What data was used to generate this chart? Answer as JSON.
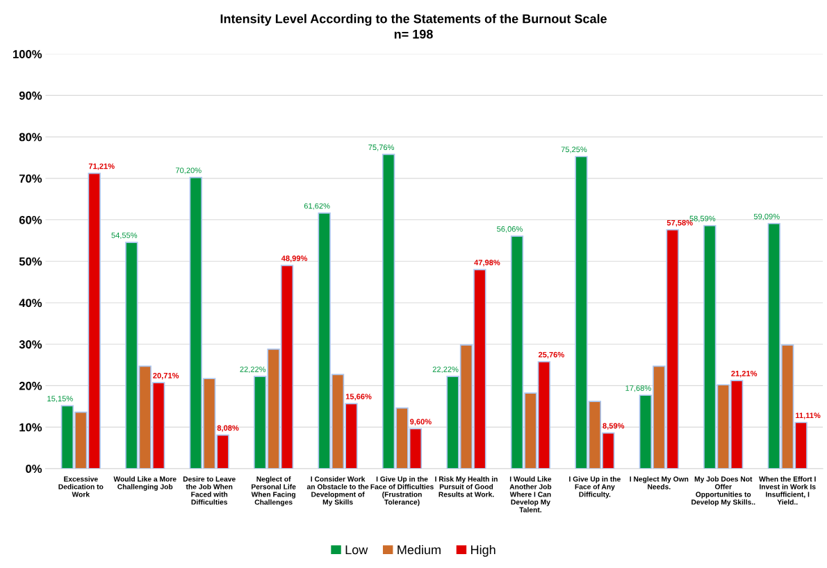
{
  "chart_data": {
    "type": "bar",
    "title": "Intensity Level According to the Statements of the Burnout Scale",
    "subtitle": "n= 198",
    "categories": [
      "Excessive\nDedication to\nWork",
      "Would Like a More\nChallenging Job",
      "Desire to Leave\nthe Job When\nFaced with\nDifficulties",
      "Neglect of\nPersonal Life\nWhen Facing\nChallenges",
      "I Consider Work\nan Obstacle to the\nDevelopment of\nMy Skills",
      "I Give Up in the\nFace of Difficulties\n(Frustration\nTolerance)",
      "I Risk My Health in\nPursuit of Good\nResults at Work.",
      "I Would Like\nAnother Job\nWhere I Can\nDevelop My\nTalent.",
      "I Give Up in the\nFace of Any\nDifficulty.",
      "I Neglect My Own\nNeeds.",
      "My Job Does Not\nOffer\nOpportunities to\nDevelop My Skills..",
      "When the Effort I\nInvest in Work Is\nInsufficient, I\nYield.."
    ],
    "series": [
      {
        "name": "Low",
        "color": "#00963f",
        "values": [
          15.15,
          54.55,
          70.2,
          22.22,
          61.62,
          75.76,
          22.22,
          56.06,
          75.25,
          17.68,
          58.59,
          59.09
        ],
        "value_labels": [
          "15,15%",
          "54,55%",
          "70,20%",
          "22,22%",
          "61,62%",
          "75,76%",
          "22,22%",
          "56,06%",
          "75,25%",
          "17,68%",
          "58,59%",
          "59,09%"
        ]
      },
      {
        "name": "Medium",
        "color": "#cd6c2a",
        "values": [
          13.6,
          24.7,
          21.7,
          28.8,
          22.7,
          14.6,
          29.8,
          18.2,
          16.2,
          24.7,
          20.2,
          29.8
        ]
      },
      {
        "name": "High",
        "color": "#e00000",
        "values": [
          71.21,
          20.71,
          8.08,
          48.99,
          15.66,
          9.6,
          47.98,
          25.76,
          8.59,
          57.58,
          21.21,
          11.11
        ],
        "value_labels": [
          "71,21%",
          "20,71%",
          "8,08%",
          "48,99%",
          "15,66%",
          "9,60%",
          "47,98%",
          "25,76%",
          "8,59%",
          "57,58%",
          "21,21%",
          "11,11%"
        ]
      }
    ],
    "ylim": [
      0,
      100
    ],
    "yticks": [
      {
        "value": 0,
        "label": "0%"
      },
      {
        "value": 10,
        "label": "10%"
      },
      {
        "value": 20,
        "label": "20%"
      },
      {
        "value": 30,
        "label": "30%"
      },
      {
        "value": 40,
        "label": "40%"
      },
      {
        "value": 50,
        "label": "50%"
      },
      {
        "value": 60,
        "label": "60%"
      },
      {
        "value": 70,
        "label": "70%"
      },
      {
        "value": 80,
        "label": "80%"
      },
      {
        "value": 90,
        "label": "90%"
      },
      {
        "value": 100,
        "label": "100%"
      }
    ],
    "grid": "y",
    "legend": "bottom"
  }
}
